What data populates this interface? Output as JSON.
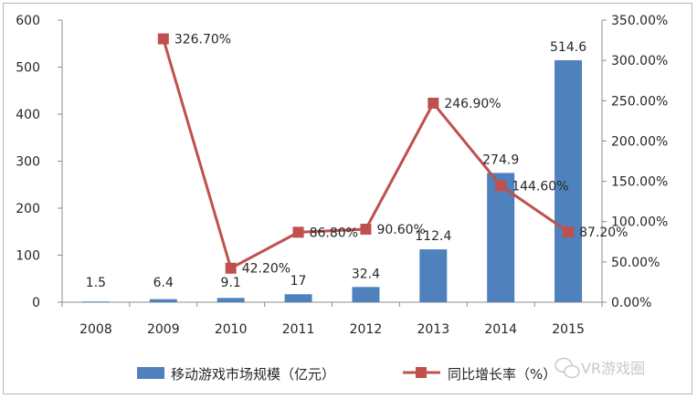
{
  "chart_data": {
    "type": "bar+line",
    "categories": [
      "2008",
      "2009",
      "2010",
      "2011",
      "2012",
      "2013",
      "2014",
      "2015"
    ],
    "series": [
      {
        "name": "移动游戏市场规模（亿元）",
        "type": "bar",
        "axis": "left",
        "color": "#4f81bd",
        "values": [
          1.5,
          6.4,
          9.1,
          17,
          32.4,
          112.4,
          274.9,
          514.6
        ],
        "labels": [
          "1.5",
          "6.4",
          "9.1",
          "17",
          "32.4",
          "112.4",
          "274.9",
          "514.6"
        ]
      },
      {
        "name": "同比增长率（%）",
        "type": "line",
        "axis": "right",
        "color": "#c0504d",
        "values": [
          null,
          326.7,
          42.2,
          86.8,
          90.6,
          246.9,
          144.6,
          87.2
        ],
        "labels": [
          "",
          "326.70%",
          "42.20%",
          "86.80%",
          "90.60%",
          "246.90%",
          "144.60%",
          "87.20%"
        ]
      }
    ],
    "y_left": {
      "min": 0,
      "max": 600,
      "ticks": [
        "0",
        "100",
        "200",
        "300",
        "400",
        "500",
        "600"
      ]
    },
    "y_right": {
      "min": 0,
      "max": 350,
      "ticks": [
        "0.00%",
        "50.00%",
        "100.00%",
        "150.00%",
        "200.00%",
        "250.00%",
        "300.00%",
        "350.00%"
      ]
    },
    "grid": false,
    "legend_position": "bottom"
  },
  "legend": {
    "bar_label": "移动游戏市场规模（亿元）",
    "line_label": "同比增长率（%）"
  },
  "watermark": {
    "text": "VR游戏圈",
    "icon": "wechat-icon"
  }
}
